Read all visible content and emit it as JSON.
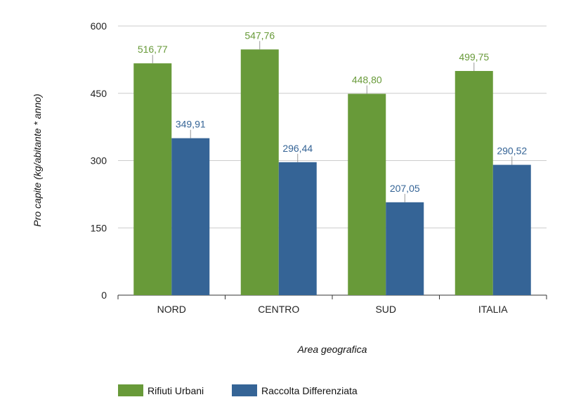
{
  "chart_data": {
    "type": "bar",
    "categories": [
      "NORD",
      "CENTRO",
      "SUD",
      "ITALIA"
    ],
    "series": [
      {
        "name": "Rifiuti Urbani",
        "values": [
          516.77,
          547.76,
          448.8,
          499.75
        ],
        "labels": [
          "516,77",
          "547,76",
          "448,80",
          "499,75"
        ],
        "color": "#689A39"
      },
      {
        "name": "Raccolta Differenziata",
        "values": [
          349.91,
          296.44,
          207.05,
          290.52
        ],
        "labels": [
          "349,91",
          "296,44",
          "207,05",
          "290,52"
        ],
        "color": "#356496"
      }
    ],
    "xlabel": "Area geografica",
    "ylabel": "Pro capite (kg/abitante * anno)",
    "ylim": [
      0,
      600
    ],
    "yticks": [
      0,
      150,
      300,
      450,
      600
    ],
    "ytick_labels": [
      "0",
      "150",
      "300",
      "450",
      "600"
    ],
    "grid": true,
    "legend_position": "bottom-left"
  }
}
